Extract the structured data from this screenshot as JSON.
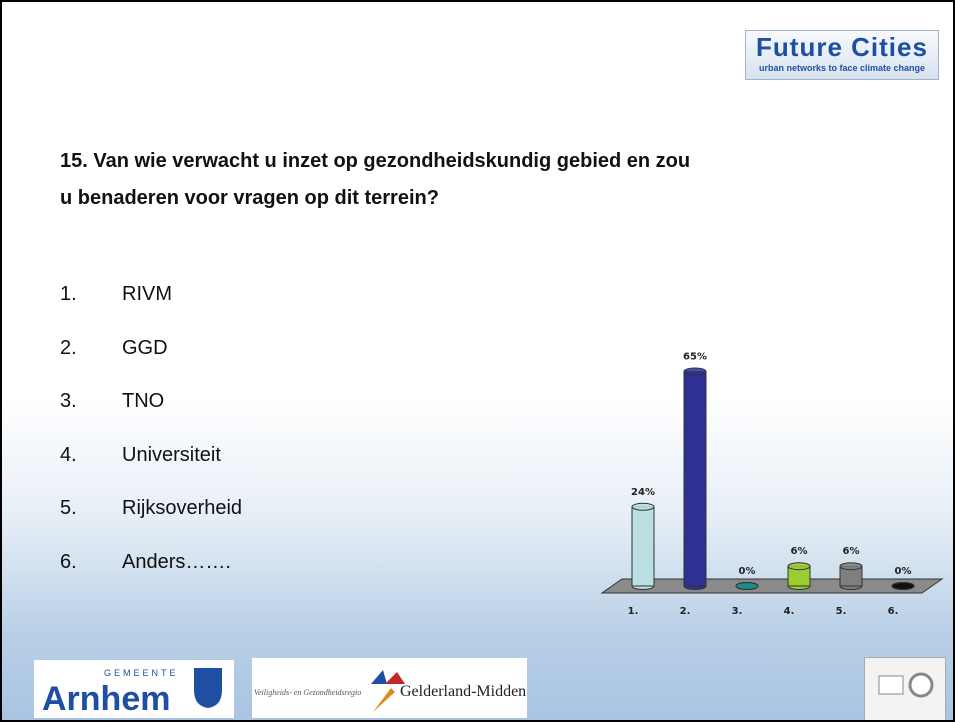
{
  "slide": {
    "logo_title": "Future Cities",
    "logo_subtitle": "urban networks to face climate change",
    "question": [
      "15. Van wie verwacht u inzet op gezondheidskundig gebied en zou",
      "u benaderen voor vragen op dit terrein?"
    ],
    "options": [
      [
        "1.",
        "RIVM"
      ],
      [
        "2.",
        "GGD"
      ],
      [
        "3.",
        "TNO"
      ],
      [
        "4.",
        "Universiteit"
      ],
      [
        "5.",
        "Rijksoverheid"
      ],
      [
        "6.",
        "Anders……."
      ]
    ],
    "footer": [
      "GEMEENTE",
      "Arnhem",
      "Veiligheids- en Gezondheidsregio",
      "Gelderland-Midden"
    ]
  },
  "chart_data": {
    "type": "bar",
    "categories": [
      "1.",
      "2.",
      "3.",
      "4.",
      "5.",
      "6."
    ],
    "values": [
      24,
      65,
      0,
      6,
      6,
      0
    ],
    "value_labels": [
      "24%",
      "65%",
      "0%",
      "6%",
      "6%",
      "0%"
    ],
    "colors": [
      "#b9dfe2",
      "#2e3192",
      "#1f8a8a",
      "#9acd32",
      "#7f7f7f",
      "#111111"
    ]
  }
}
